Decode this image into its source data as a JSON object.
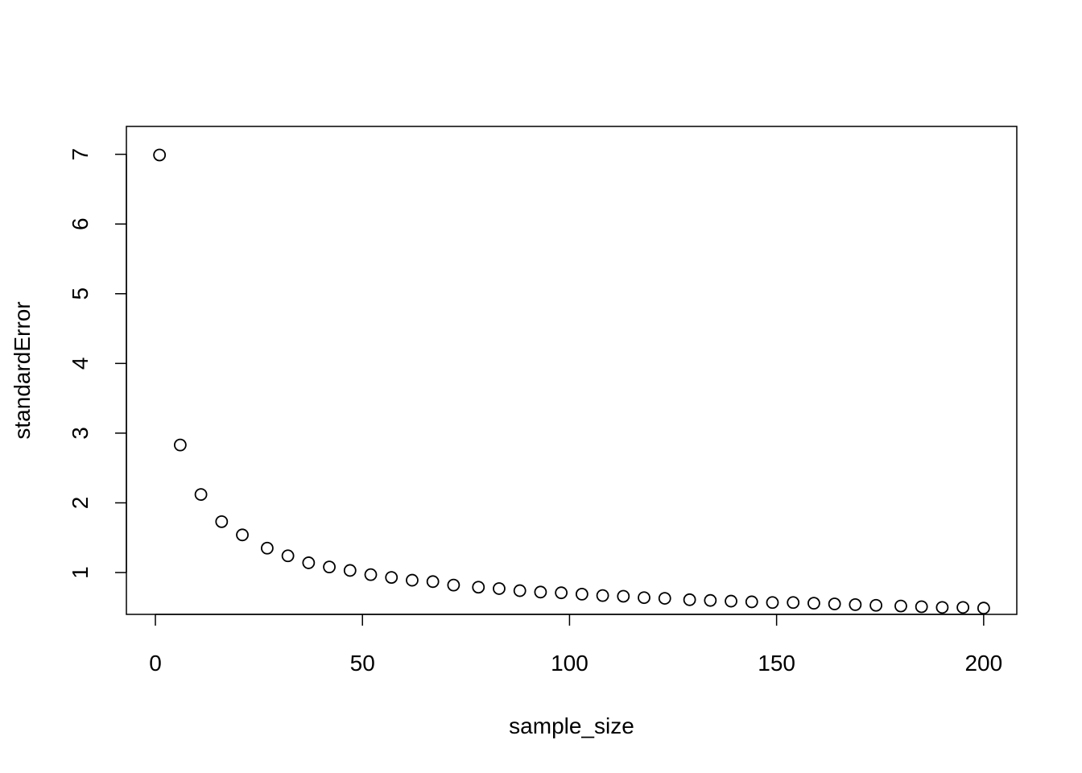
{
  "chart_data": {
    "type": "scatter",
    "title": "",
    "xlabel": "sample_size",
    "ylabel": "standardError",
    "xlim": [
      -7,
      208
    ],
    "ylim": [
      0.4,
      7.4
    ],
    "x_ticks": [
      0,
      50,
      100,
      150,
      200
    ],
    "y_ticks": [
      1,
      2,
      3,
      4,
      5,
      6,
      7
    ],
    "x_tick_labels": [
      "0",
      "50",
      "100",
      "150",
      "200"
    ],
    "y_tick_labels": [
      "1",
      "2",
      "3",
      "4",
      "5",
      "6",
      "7"
    ],
    "grid": false,
    "marker": "open-circle",
    "point_color": "#000000",
    "series": [
      {
        "x": [
          1,
          6,
          11,
          16,
          21,
          27,
          32,
          37,
          42,
          47,
          52,
          57,
          62,
          67,
          72,
          78,
          83,
          88,
          93,
          98,
          103,
          108,
          113,
          118,
          123,
          129,
          134,
          139,
          144,
          149,
          154,
          159,
          164,
          169,
          174,
          180,
          185,
          190,
          195,
          200
        ],
        "y": [
          6.99,
          2.83,
          2.12,
          1.73,
          1.54,
          1.35,
          1.24,
          1.14,
          1.08,
          1.03,
          0.97,
          0.93,
          0.89,
          0.87,
          0.82,
          0.79,
          0.77,
          0.74,
          0.72,
          0.71,
          0.69,
          0.67,
          0.66,
          0.64,
          0.63,
          0.61,
          0.6,
          0.59,
          0.58,
          0.57,
          0.57,
          0.56,
          0.55,
          0.54,
          0.53,
          0.52,
          0.51,
          0.5,
          0.5,
          0.49
        ]
      }
    ]
  }
}
